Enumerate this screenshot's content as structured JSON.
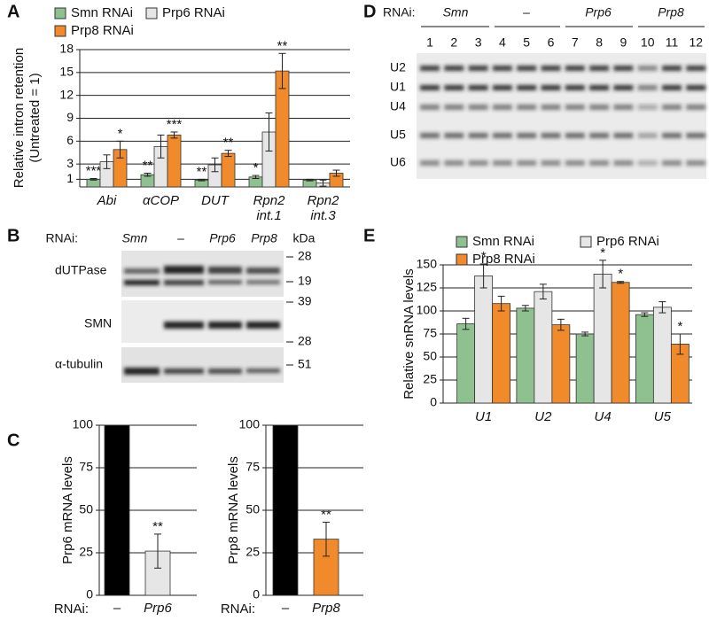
{
  "panels": [
    "A",
    "B",
    "C",
    "D",
    "E"
  ],
  "chart_data": [
    {
      "type": "bar",
      "ylabel": "Relative intron retention",
      "ylabel2": "(Untreated  = 1)",
      "categories": [
        "Abi",
        "αCOP",
        "DUT",
        "Rpn2 int.1",
        "Rpn2 int.3"
      ],
      "series": [
        {
          "name": "Smn RNAi",
          "color": "#8fc08f",
          "values": [
            1.0,
            1.6,
            0.9,
            1.3,
            0.9
          ],
          "errors": [
            0.1,
            0.2,
            0.1,
            0.2,
            0.1
          ],
          "annotations": [
            "***",
            "**",
            "**",
            "*",
            null
          ]
        },
        {
          "name": "Prp6 RNAi",
          "color": "#e6e6e6",
          "values": [
            3.3,
            5.3,
            2.9,
            7.2,
            0.5
          ],
          "errors": [
            0.9,
            1.5,
            0.9,
            2.5,
            0.4
          ],
          "annotations": [
            null,
            null,
            null,
            null,
            null
          ]
        },
        {
          "name": "Prp8 RNAi",
          "color": "#f08a2a",
          "values": [
            4.9,
            6.8,
            4.4,
            15.2,
            1.8
          ],
          "errors": [
            1.1,
            0.4,
            0.4,
            2.3,
            0.4
          ],
          "annotations": [
            "*",
            "***",
            "**",
            "**",
            null
          ]
        }
      ],
      "ylim": [
        0,
        18
      ],
      "yticks": [
        1,
        3,
        6,
        9,
        12,
        15,
        18
      ],
      "grid": true
    },
    {
      "type": "bar",
      "ylabel": "Prp6 mRNA levels",
      "xlabel": "RNAi:",
      "categories": [
        "–",
        "Prp6"
      ],
      "values": [
        100,
        26
      ],
      "errors": [
        null,
        10
      ],
      "colors": [
        "#000000",
        "#e6e6e6"
      ],
      "annotations": [
        null,
        "**"
      ],
      "ylim": [
        0,
        100
      ],
      "yticks": [
        0,
        25,
        50,
        75,
        100
      ],
      "grid": true
    },
    {
      "type": "bar",
      "ylabel": "Prp8 mRNA levels",
      "xlabel": "RNAi:",
      "categories": [
        "–",
        "Prp8"
      ],
      "values": [
        100,
        33
      ],
      "errors": [
        null,
        10
      ],
      "colors": [
        "#000000",
        "#f08a2a"
      ],
      "annotations": [
        null,
        "**"
      ],
      "ylim": [
        0,
        100
      ],
      "yticks": [
        0,
        25,
        50,
        75,
        100
      ],
      "grid": true
    },
    {
      "type": "bar",
      "ylabel": "Relative snRNA levels",
      "categories": [
        "U1",
        "U2",
        "U4",
        "U5"
      ],
      "series": [
        {
          "name": "Smn RNAi",
          "color": "#8fc08f",
          "values": [
            86,
            103,
            75,
            96
          ],
          "errors": [
            6,
            3,
            2,
            2
          ],
          "annotations": [
            null,
            null,
            null,
            null
          ]
        },
        {
          "name": "Prp6 RNAi",
          "color": "#e6e6e6",
          "values": [
            138,
            121,
            140,
            104
          ],
          "errors": [
            13,
            8,
            15,
            6
          ],
          "annotations": [
            "*",
            null,
            "*",
            null
          ]
        },
        {
          "name": "Prp8 RNAi",
          "color": "#f08a2a",
          "values": [
            108,
            85,
            131,
            64
          ],
          "errors": [
            8,
            6,
            1,
            11
          ],
          "annotations": [
            null,
            null,
            "*",
            "*"
          ]
        }
      ],
      "ylim": [
        0,
        150
      ],
      "yticks": [
        0,
        25,
        50,
        75,
        100,
        125,
        150
      ],
      "grid": true
    }
  ],
  "blot_b": {
    "rnai_label": "RNAi:",
    "lanes": [
      "Smn",
      "–",
      "Prp6",
      "Prp8"
    ],
    "unit": "kDa",
    "rows": [
      "dUTPase",
      "SMN",
      "α-tubulin"
    ],
    "markers": [
      "28",
      "19",
      "39",
      "28",
      "51"
    ]
  },
  "blot_d": {
    "rnai_label": "RNAi:",
    "groups": [
      "Smn",
      "–",
      "Prp6",
      "Prp8"
    ],
    "lanes": [
      "1",
      "2",
      "3",
      "4",
      "5",
      "6",
      "7",
      "8",
      "9",
      "10",
      "11",
      "12"
    ],
    "bands": [
      "U2",
      "U1",
      "U4",
      "U5",
      "U6"
    ]
  }
}
